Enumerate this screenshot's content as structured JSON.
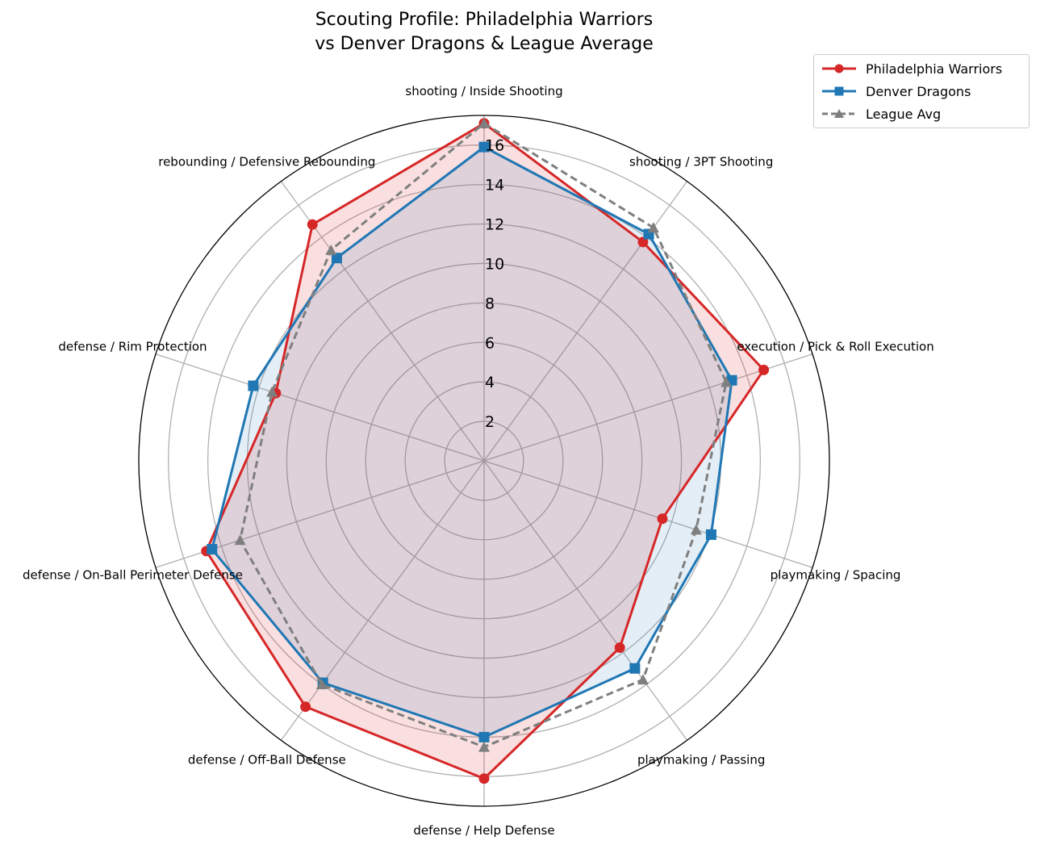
{
  "chart_data": {
    "type": "radar",
    "title": "Scouting Profile: Philadelphia Warriors\nvs Denver Dragons & League Average",
    "title_lines": [
      "Scouting Profile: Philadelphia Warriors",
      "vs Denver Dragons & League Average"
    ],
    "categories": [
      "shooting / Inside Shooting",
      "shooting / 3PT Shooting",
      "execution / Pick & Roll Execution",
      "playmaking / Spacing",
      "playmaking / Passing",
      "defense / Help Defense",
      "defense / Off-Ball Defense",
      "defense / On-Ball Perimeter Defense",
      "defense / Rim Protection",
      "rebounding / Defensive Rebounding"
    ],
    "radial_ticks": [
      2,
      4,
      6,
      8,
      10,
      12,
      14,
      16
    ],
    "rlim": [
      0,
      17.5
    ],
    "grid": true,
    "legend_position": "top-right",
    "series": [
      {
        "name": "Philadelphia Warriors",
        "color": "#d62728",
        "marker": "circle",
        "linestyle": "solid",
        "fill": true,
        "values": [
          17.1,
          13.7,
          14.9,
          9.5,
          11.7,
          16.1,
          15.4,
          14.8,
          11.1,
          14.8
        ]
      },
      {
        "name": "Denver Dragons",
        "color": "#1f77b4",
        "marker": "square",
        "linestyle": "solid",
        "fill": true,
        "values": [
          15.9,
          14.2,
          13.2,
          12.1,
          13.0,
          14.0,
          13.9,
          14.5,
          12.3,
          12.7
        ]
      },
      {
        "name": "League Avg",
        "color": "#7f7f7f",
        "marker": "triangle",
        "linestyle": "dashed",
        "fill": false,
        "values": [
          17.1,
          14.6,
          12.9,
          11.3,
          13.7,
          14.5,
          14.0,
          13.0,
          11.3,
          13.2
        ]
      }
    ]
  }
}
